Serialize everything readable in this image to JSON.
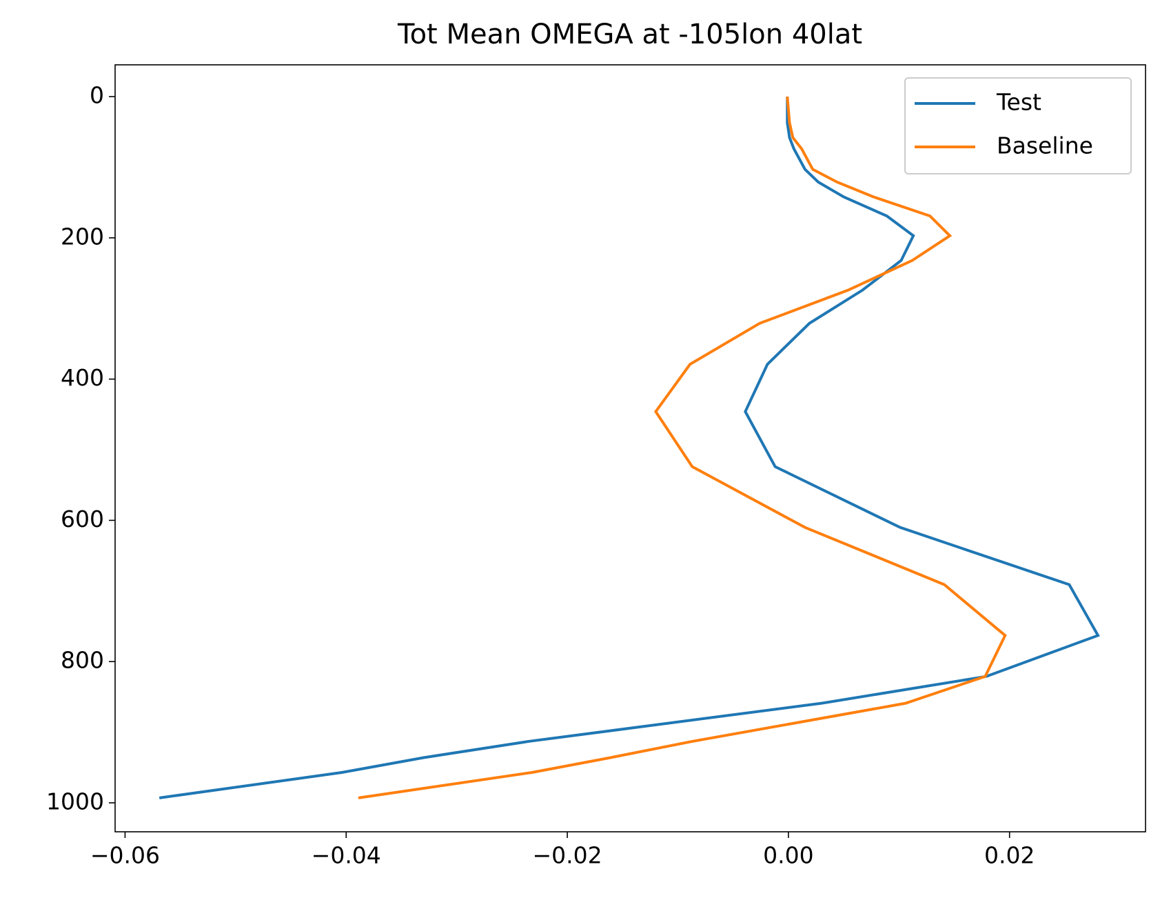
{
  "chart_data": {
    "type": "line",
    "orientation": "vertical",
    "title": "Tot Mean OMEGA at -105lon 40lat",
    "levels": [
      0,
      37,
      58,
      74,
      103,
      121,
      142,
      169,
      197,
      232,
      274,
      321,
      379,
      446,
      524,
      610,
      691,
      763,
      821,
      859,
      913,
      936,
      957,
      993
    ],
    "series": [
      {
        "name": "Test",
        "color": "#1f77b4",
        "values": [
          -0.0001,
          -0.0001,
          0.0001,
          0.0005,
          0.0015,
          0.0027,
          0.005,
          0.0089,
          0.0113,
          0.0102,
          0.0067,
          0.0019,
          -0.0019,
          -0.0039,
          -0.0012,
          0.0101,
          0.0254,
          0.028,
          0.0179,
          0.003,
          -0.0235,
          -0.033,
          -0.0404,
          -0.0569
        ]
      },
      {
        "name": "Baseline",
        "color": "#ff7f0e",
        "values": [
          -0.0001,
          0.0001,
          0.0004,
          0.0012,
          0.0022,
          0.0044,
          0.0077,
          0.0128,
          0.0146,
          0.0112,
          0.0054,
          -0.0026,
          -0.0089,
          -0.012,
          -0.0087,
          0.0015,
          0.0141,
          0.0196,
          0.0178,
          0.0106,
          -0.0087,
          -0.0161,
          -0.0232,
          -0.0389
        ]
      }
    ],
    "xlim": [
      -0.0609,
      0.0323
    ],
    "xticks": [
      {
        "value": -0.06,
        "label": "−0.06"
      },
      {
        "value": -0.04,
        "label": "−0.04"
      },
      {
        "value": -0.02,
        "label": "−0.02"
      },
      {
        "value": 0,
        "label": "0.00"
      },
      {
        "value": 0.02,
        "label": "0.02"
      }
    ],
    "ylim": [
      1041,
      -45
    ],
    "yticks": [
      0,
      200,
      400,
      600,
      800,
      1000
    ],
    "grid": false,
    "legend": "upper right"
  }
}
